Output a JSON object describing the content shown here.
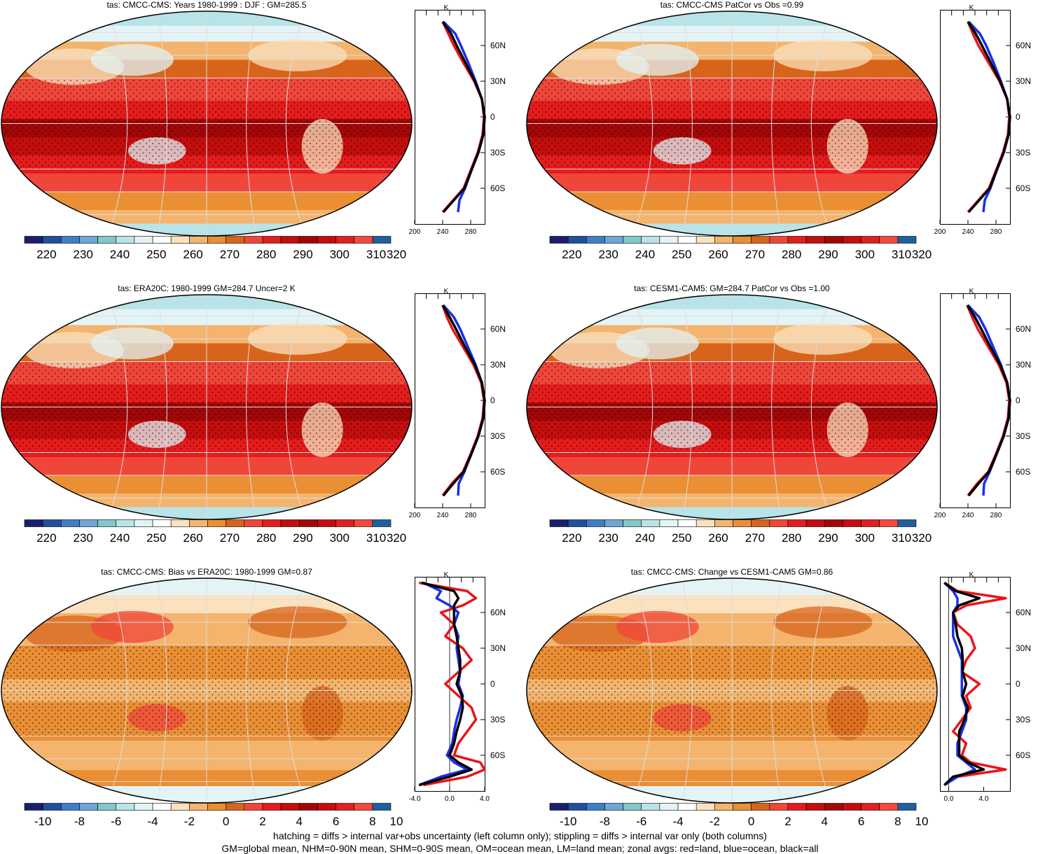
{
  "colors": {
    "abs_scale": [
      "#1a1f6b",
      "#1f4f9e",
      "#3c7fc4",
      "#6ea7d8",
      "#82c8c8",
      "#b8e3e8",
      "#e3f3f6",
      "#ffffff",
      "#fbe2bf",
      "#f4b46e",
      "#ea8f34",
      "#d8641b",
      "#f0463a",
      "#e51c1c",
      "#c40d0d",
      "#a20707",
      "#c80c0c",
      "#e02020",
      "#f24a3c",
      "#1f5fa0"
    ],
    "diff_scale": [
      "#1a1f6b",
      "#1f4f9e",
      "#3c7fc4",
      "#6ea7d8",
      "#82c8c8",
      "#b8e3e8",
      "#e3f3f6",
      "#ffffff",
      "#fbe2bf",
      "#f4b46e",
      "#ea8f34",
      "#d8641b",
      "#f0463a",
      "#e51c1c",
      "#c40d0d",
      "#a20707",
      "#c80c0c",
      "#e02020",
      "#f24a3c",
      "#1f5fa0"
    ],
    "land": "#e8141a",
    "ocean": "#1c2ee8",
    "all": "#000000"
  },
  "abs_labels": [
    "220",
    "230",
    "240",
    "250",
    "260",
    "270",
    "280",
    "290",
    "300",
    "310",
    "320"
  ],
  "diff_labels": [
    "-10",
    "-8",
    "-6",
    "-4",
    "-2",
    "0",
    "2",
    "4",
    "6",
    "8",
    "10"
  ],
  "lat_labels": [
    "60N",
    "30N",
    "0",
    "30S",
    "60S"
  ],
  "unit": "K",
  "panels": [
    {
      "title": "tas: CMCC-CMS: Years 1980-1999 : DJF : GM=285.5",
      "zx_ticks": [
        "200",
        "240",
        "280"
      ],
      "kind": "abs"
    },
    {
      "title": "tas: CMCC-CMS PatCor vs Obs =0.99",
      "zx_ticks": [
        "200",
        "240",
        "280"
      ],
      "kind": "abs"
    },
    {
      "title": "tas: ERA20C: 1980-1999 GM=284.7 Uncer=2 K",
      "zx_ticks": [
        "200",
        "240",
        "280"
      ],
      "kind": "abs"
    },
    {
      "title": "tas: CESM1-CAM5: GM=284.7 PatCor vs Obs =1.00",
      "zx_ticks": [
        "200",
        "240",
        "280"
      ],
      "kind": "abs"
    },
    {
      "title": "tas: CMCC-CMS: Bias vs ERA20C: 1980-1999 GM=0.87",
      "zx_ticks": [
        "-4.0",
        "0.0",
        "4.0"
      ],
      "kind": "diff"
    },
    {
      "title": "tas: CMCC-CMS: Change vs CESM1-CAM5 GM=0.86",
      "zx_ticks": [
        "0.0",
        "4.0"
      ],
      "kind": "diff"
    }
  ],
  "chart_data": [
    {
      "type": "zonal-profile",
      "title": "tas: CMCC-CMS: Years 1980-1999 : DJF : GM=285.5",
      "xlabel": "K",
      "xlim": [
        200,
        300
      ],
      "lat": [
        80,
        70,
        60,
        45,
        30,
        15,
        0,
        -15,
        -30,
        -45,
        -60,
        -70,
        -80
      ],
      "series": [
        {
          "name": "land",
          "values": [
            240,
            248,
            256,
            270,
            285,
            296,
            299,
            297,
            290,
            280,
            270,
            255,
            240
          ]
        },
        {
          "name": "ocean",
          "values": [
            241,
            258,
            266,
            277,
            287,
            296,
            300,
            298,
            291,
            281,
            272,
            264,
            262
          ]
        },
        {
          "name": "all",
          "values": [
            240,
            252,
            260,
            273,
            286,
            296,
            300,
            298,
            291,
            281,
            271,
            256,
            241
          ]
        }
      ]
    },
    {
      "type": "zonal-profile",
      "title": "tas: CMCC-CMS PatCor vs Obs =0.99",
      "xlabel": "K",
      "xlim": [
        200,
        300
      ],
      "lat": [
        80,
        70,
        60,
        45,
        30,
        15,
        0,
        -15,
        -30,
        -45,
        -60,
        -70,
        -80
      ],
      "series": [
        {
          "name": "land",
          "values": [
            240,
            247,
            255,
            270,
            285,
            296,
            299,
            297,
            290,
            280,
            270,
            255,
            240
          ]
        },
        {
          "name": "ocean",
          "values": [
            241,
            257,
            266,
            277,
            287,
            296,
            300,
            298,
            291,
            281,
            272,
            264,
            262
          ]
        },
        {
          "name": "all",
          "values": [
            240,
            251,
            260,
            273,
            286,
            296,
            300,
            298,
            291,
            281,
            271,
            256,
            241
          ]
        }
      ]
    },
    {
      "type": "zonal-profile",
      "title": "tas: ERA20C: 1980-1999 GM=284.7 Uncer=2 K",
      "xlabel": "K",
      "xlim": [
        200,
        300
      ],
      "lat": [
        80,
        70,
        60,
        45,
        30,
        15,
        0,
        -15,
        -30,
        -45,
        -60,
        -70,
        -80
      ],
      "series": [
        {
          "name": "land",
          "values": [
            240,
            246,
            254,
            269,
            284,
            295,
            299,
            297,
            290,
            280,
            269,
            253,
            240
          ]
        },
        {
          "name": "ocean",
          "values": [
            241,
            256,
            265,
            276,
            287,
            296,
            300,
            298,
            291,
            281,
            271,
            263,
            262
          ]
        },
        {
          "name": "all",
          "values": [
            240,
            250,
            259,
            272,
            286,
            296,
            300,
            298,
            291,
            281,
            270,
            255,
            241
          ]
        }
      ]
    },
    {
      "type": "zonal-profile",
      "title": "tas: CESM1-CAM5: GM=284.7 PatCor vs Obs =1.00",
      "xlabel": "K",
      "xlim": [
        200,
        300
      ],
      "lat": [
        80,
        70,
        60,
        45,
        30,
        15,
        0,
        -15,
        -30,
        -45,
        -60,
        -70,
        -80
      ],
      "series": [
        {
          "name": "land",
          "values": [
            239,
            246,
            254,
            269,
            284,
            295,
            299,
            297,
            290,
            280,
            269,
            253,
            240
          ]
        },
        {
          "name": "ocean",
          "values": [
            240,
            256,
            265,
            276,
            287,
            296,
            300,
            298,
            291,
            281,
            271,
            263,
            262
          ]
        },
        {
          "name": "all",
          "values": [
            239,
            250,
            259,
            272,
            286,
            296,
            300,
            298,
            291,
            281,
            270,
            255,
            241
          ]
        }
      ]
    },
    {
      "type": "zonal-profile",
      "title": "tas: CMCC-CMS: Bias vs ERA20C: 1980-1999 GM=0.87",
      "xlabel": "K",
      "xlim": [
        -4,
        4
      ],
      "lat": [
        85,
        78,
        72,
        66,
        60,
        50,
        40,
        30,
        20,
        10,
        0,
        -10,
        -20,
        -30,
        -40,
        -50,
        -60,
        -66,
        -72,
        -78,
        -85
      ],
      "series": [
        {
          "name": "land",
          "values": [
            -3.5,
            2.0,
            3.0,
            1.5,
            -1.0,
            0.5,
            -0.5,
            1.5,
            2.5,
            1.0,
            -0.5,
            1.0,
            2.5,
            3.0,
            2.0,
            1.0,
            0.5,
            3.5,
            4.0,
            2.0,
            -3.0
          ]
        },
        {
          "name": "ocean",
          "values": [
            -3.0,
            -1.0,
            -1.5,
            0.0,
            1.0,
            0.5,
            1.0,
            0.8,
            1.0,
            1.2,
            1.0,
            1.5,
            1.2,
            0.8,
            0.5,
            0.3,
            -0.3,
            0.5,
            2.0,
            -1.0,
            -3.5
          ]
        },
        {
          "name": "all",
          "values": [
            -3.2,
            0.5,
            1.0,
            0.5,
            0.5,
            0.5,
            0.8,
            1.0,
            1.2,
            1.2,
            0.8,
            1.4,
            1.5,
            1.2,
            0.8,
            0.5,
            0.0,
            1.0,
            2.5,
            0.0,
            -3.5
          ]
        }
      ]
    },
    {
      "type": "zonal-profile",
      "title": "tas: CMCC-CMS: Change vs CESM1-CAM5 GM=0.86",
      "xlabel": "K",
      "xlim": [
        -1,
        7
      ],
      "lat": [
        85,
        78,
        72,
        66,
        60,
        50,
        40,
        30,
        20,
        10,
        0,
        -10,
        -20,
        -30,
        -40,
        -50,
        -60,
        -66,
        -72,
        -78,
        -85
      ],
      "series": [
        {
          "name": "land",
          "values": [
            -0.5,
            1.0,
            6.5,
            2.0,
            0.5,
            1.0,
            2.5,
            3.0,
            2.0,
            1.5,
            3.5,
            2.0,
            2.5,
            1.5,
            0.5,
            2.0,
            1.5,
            2.5,
            6.5,
            1.0,
            -0.5
          ]
        },
        {
          "name": "ocean",
          "values": [
            -0.5,
            0.5,
            1.0,
            1.0,
            0.5,
            0.5,
            0.5,
            1.0,
            1.5,
            1.5,
            1.5,
            1.5,
            2.0,
            2.0,
            1.5,
            1.0,
            1.0,
            2.0,
            3.0,
            1.0,
            -0.5
          ]
        },
        {
          "name": "all",
          "values": [
            -0.5,
            0.8,
            3.5,
            1.2,
            0.5,
            0.8,
            1.0,
            1.5,
            1.6,
            1.6,
            2.0,
            1.6,
            2.2,
            1.8,
            1.2,
            1.2,
            1.2,
            2.2,
            4.0,
            0.5,
            -0.5
          ]
        }
      ]
    }
  ],
  "footer": {
    "line1": "hatching = diffs > internal var+obs uncertainty (left column only); stippling = diffs > internal var only (both columns)",
    "line2": "GM=global mean, NHM=0-90N mean, SHM=0-90S mean, OM=ocean mean, LM=land mean; zonal avgs: red=land, blue=ocean, black=all"
  }
}
